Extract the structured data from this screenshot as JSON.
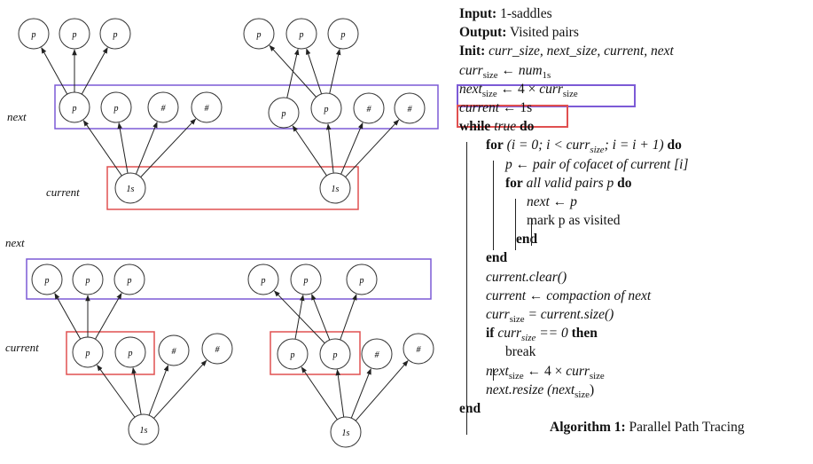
{
  "diagram": {
    "label_next": "next",
    "label_current": "current",
    "node_p": "p",
    "node_hash": "#",
    "node_1s": "1s"
  },
  "algorithm": {
    "input_kw": "Input:",
    "input_val": "1-saddles",
    "output_kw": "Output:",
    "output_val": "Visited pairs",
    "init_kw": "Init:",
    "init_val": "curr_size, next_size, current, next",
    "curr_size": "curr",
    "size_sub": "size",
    "num1s": "num",
    "num1s_sub": "1s",
    "four_times": "← 4 ×",
    "current_kw": "current",
    "one_s": "← 1s",
    "while_kw": "while",
    "true_kw": "true",
    "do_kw": "do",
    "for_kw": "for",
    "for_cond": "(i = 0;  i < curr",
    "for_cond2": ";  i = i + 1)",
    "p_assign": "p ← pair of cofacet of current [i]",
    "for_all": "for",
    "all_valid": "all valid pairs p",
    "next_assign": "next ← p",
    "mark": "mark p as visited",
    "end_kw": "end",
    "clear_line": "current.clear()",
    "compaction_line": "current ← compaction of next",
    "currsize_line": "= current.size()",
    "if_kw": "if",
    "if_cond": "curr",
    "if_cond2": "== 0",
    "then_kw": "then",
    "break_kw": "break",
    "next_kw": "next",
    "resize_line": "next.resize (next",
    "caption_kw": "Algorithm 1:",
    "caption_val": "Parallel Path Tracing"
  },
  "colors": {
    "blue_box": "#7c5ad6",
    "red_box": "#e05050"
  }
}
